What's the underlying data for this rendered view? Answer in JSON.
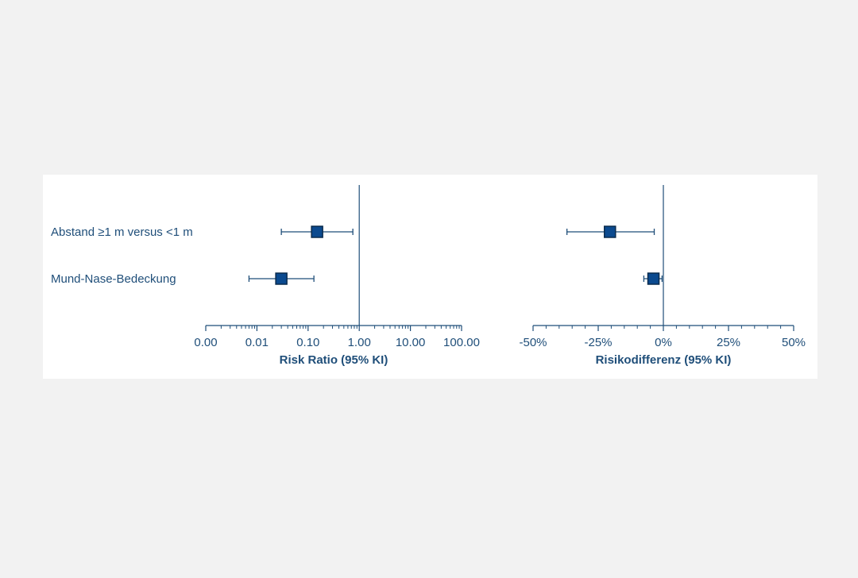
{
  "colors": {
    "background": "#f2f2f2",
    "panel": "#ffffff",
    "primary": "#1f4e79",
    "marker_fill": "#0b4a8f",
    "marker_stroke": "#0a2b4d"
  },
  "chart_data": [
    {
      "type": "forest",
      "xlabel": "Risk Ratio (95% KI)",
      "scale": "log",
      "xlim": [
        0.001,
        100
      ],
      "ticks": [
        0.001,
        0.01,
        0.1,
        1,
        10,
        100
      ],
      "tick_labels": [
        "0.00",
        "0.01",
        "0.10",
        "1.00",
        "10.00",
        "100.00"
      ],
      "reference": 1,
      "rows": [
        {
          "label": "Abstand ≥1 m versus <1 m",
          "estimate": 0.15,
          "lower": 0.03,
          "upper": 0.75
        },
        {
          "label": "Mund-Nase-Bedeckung",
          "estimate": 0.03,
          "lower": 0.007,
          "upper": 0.13
        }
      ]
    },
    {
      "type": "forest",
      "xlabel": "Risikodifferenz (95% KI)",
      "scale": "linear",
      "xlim": [
        -50,
        50
      ],
      "ticks": [
        -50,
        -25,
        0,
        25,
        50
      ],
      "tick_labels": [
        "-50%",
        "-25%",
        "0%",
        "25%",
        "50%"
      ],
      "minor_step": 5,
      "reference": 0,
      "rows": [
        {
          "label": "Abstand ≥1 m versus <1 m",
          "estimate": -20.5,
          "lower": -37,
          "upper": -3.5
        },
        {
          "label": "Mund-Nase-Bedeckung",
          "estimate": -3.8,
          "lower": -7.5,
          "upper": -0.5
        }
      ]
    }
  ]
}
